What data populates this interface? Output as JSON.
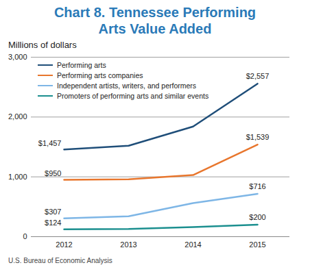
{
  "chart_data": {
    "type": "line",
    "title": "Chart 8. Tennessee Performing Arts Value Added",
    "subtitle": "Millions of dollars",
    "caption": "U.S. Bureau of Economic Analysis",
    "categories": [
      "2012",
      "2013",
      "2014",
      "2015"
    ],
    "series": [
      {
        "name": "Performing arts",
        "color": "#1f4e79",
        "values": [
          1457,
          1520,
          1840,
          2557
        ],
        "value_labels": [
          "$1,457",
          null,
          null,
          "$2,557"
        ]
      },
      {
        "name": "Performing arts companies",
        "color": "#e8762d",
        "values": [
          950,
          960,
          1030,
          1539
        ],
        "value_labels": [
          "$950",
          null,
          null,
          "$1,539"
        ]
      },
      {
        "name": "Independent artists, writers, and performers",
        "color": "#7eb6e6",
        "values": [
          307,
          340,
          560,
          716
        ],
        "value_labels": [
          "$307",
          null,
          null,
          "$716"
        ]
      },
      {
        "name": "Promoters of performing arts and similar events",
        "color": "#1b8f8f",
        "values": [
          124,
          130,
          160,
          200
        ],
        "value_labels": [
          "$124",
          null,
          null,
          "$200"
        ]
      }
    ],
    "ylim": [
      0,
      3000
    ],
    "yticks": [
      0,
      {
        "value": 1000,
        "label": "1,000"
      },
      {
        "value": 2000,
        "label": "2,000"
      },
      {
        "value": 3000,
        "label": "3,000"
      }
    ],
    "grid": true,
    "legend": "top-left",
    "data_labels": true
  }
}
